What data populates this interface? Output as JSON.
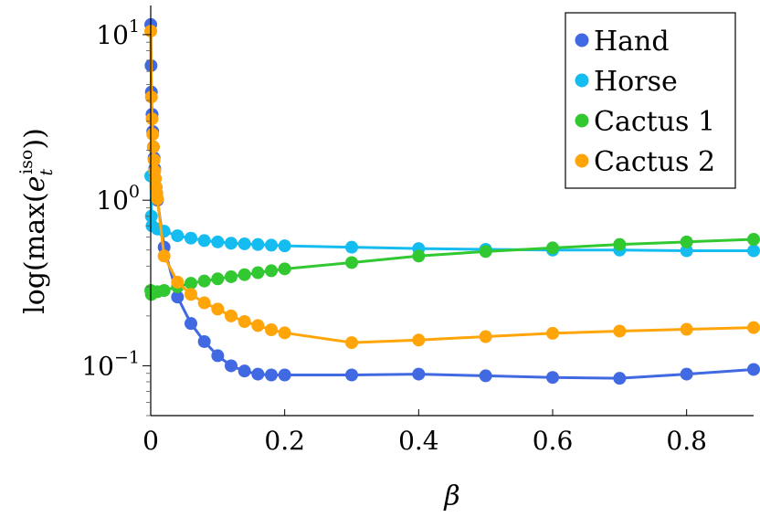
{
  "chart_data": {
    "type": "line",
    "title": "",
    "xlabel": "β",
    "ylabel": "log(max(e_t^iso))",
    "ylabel_parts": {
      "prefix": "log(max(",
      "base": "e",
      "sub": "t",
      "sup": "iso",
      "suffix": "))"
    },
    "xlim": [
      0,
      0.9
    ],
    "ylim": [
      0.05,
      15
    ],
    "yscale": "log",
    "grid": false,
    "legend_position": "top-right",
    "x_ticks": [
      {
        "value": 0,
        "label": "0"
      },
      {
        "value": 0.2,
        "label": "0.2"
      },
      {
        "value": 0.4,
        "label": "0.4"
      },
      {
        "value": 0.6,
        "label": "0.6"
      },
      {
        "value": 0.8,
        "label": "0.8"
      }
    ],
    "y_ticks": [
      {
        "value": 0.1,
        "base": "10",
        "exp": "−1"
      },
      {
        "value": 1,
        "base": "10",
        "exp": "0"
      },
      {
        "value": 10,
        "base": "10",
        "exp": "1"
      }
    ],
    "series": [
      {
        "name": "Hand",
        "color": "#4169e1",
        "points": [
          [
            0.0001,
            11.5
          ],
          [
            0.0005,
            6.5
          ],
          [
            0.001,
            4.5
          ],
          [
            0.002,
            3.3
          ],
          [
            0.003,
            2.6
          ],
          [
            0.004,
            2.1
          ],
          [
            0.005,
            1.8
          ],
          [
            0.006,
            1.55
          ],
          [
            0.007,
            1.35
          ],
          [
            0.008,
            1.2
          ],
          [
            0.009,
            1.1
          ],
          [
            0.01,
            1.0
          ],
          [
            0.02,
            0.52
          ],
          [
            0.04,
            0.26
          ],
          [
            0.06,
            0.18
          ],
          [
            0.08,
            0.14
          ],
          [
            0.1,
            0.115
          ],
          [
            0.12,
            0.1
          ],
          [
            0.14,
            0.093
          ],
          [
            0.16,
            0.089
          ],
          [
            0.18,
            0.088
          ],
          [
            0.2,
            0.088
          ],
          [
            0.3,
            0.088
          ],
          [
            0.4,
            0.089
          ],
          [
            0.5,
            0.087
          ],
          [
            0.6,
            0.085
          ],
          [
            0.7,
            0.084
          ],
          [
            0.8,
            0.089
          ],
          [
            0.9,
            0.095
          ]
        ]
      },
      {
        "name": "Horse",
        "color": "#14bcf0",
        "points": [
          [
            0.0001,
            1.4
          ],
          [
            0.001,
            0.8
          ],
          [
            0.002,
            0.7
          ],
          [
            0.01,
            0.67
          ],
          [
            0.02,
            0.65
          ],
          [
            0.04,
            0.61
          ],
          [
            0.06,
            0.59
          ],
          [
            0.08,
            0.57
          ],
          [
            0.1,
            0.56
          ],
          [
            0.12,
            0.55
          ],
          [
            0.14,
            0.545
          ],
          [
            0.16,
            0.54
          ],
          [
            0.18,
            0.535
          ],
          [
            0.2,
            0.53
          ],
          [
            0.3,
            0.52
          ],
          [
            0.4,
            0.51
          ],
          [
            0.5,
            0.505
          ],
          [
            0.6,
            0.5
          ],
          [
            0.7,
            0.5
          ],
          [
            0.8,
            0.495
          ],
          [
            0.9,
            0.495
          ]
        ]
      },
      {
        "name": "Cactus 1",
        "color": "#32c832",
        "points": [
          [
            0.0001,
            0.285
          ],
          [
            0.001,
            0.27
          ],
          [
            0.002,
            0.275
          ],
          [
            0.01,
            0.28
          ],
          [
            0.02,
            0.285
          ],
          [
            0.04,
            0.3
          ],
          [
            0.06,
            0.315
          ],
          [
            0.08,
            0.325
          ],
          [
            0.1,
            0.335
          ],
          [
            0.12,
            0.345
          ],
          [
            0.14,
            0.355
          ],
          [
            0.16,
            0.365
          ],
          [
            0.18,
            0.375
          ],
          [
            0.2,
            0.385
          ],
          [
            0.3,
            0.42
          ],
          [
            0.4,
            0.46
          ],
          [
            0.5,
            0.49
          ],
          [
            0.6,
            0.515
          ],
          [
            0.7,
            0.54
          ],
          [
            0.8,
            0.56
          ],
          [
            0.9,
            0.58
          ]
        ]
      },
      {
        "name": "Cactus 2",
        "color": "#ffa50a",
        "points": [
          [
            0.0001,
            10.5
          ],
          [
            0.001,
            4.2
          ],
          [
            0.002,
            3.1
          ],
          [
            0.003,
            2.5
          ],
          [
            0.004,
            2.1
          ],
          [
            0.005,
            1.75
          ],
          [
            0.006,
            1.5
          ],
          [
            0.007,
            1.35
          ],
          [
            0.008,
            1.2
          ],
          [
            0.009,
            1.1
          ],
          [
            0.01,
            1.02
          ],
          [
            0.02,
            0.46
          ],
          [
            0.04,
            0.32
          ],
          [
            0.06,
            0.27
          ],
          [
            0.08,
            0.24
          ],
          [
            0.1,
            0.22
          ],
          [
            0.12,
            0.2
          ],
          [
            0.14,
            0.185
          ],
          [
            0.16,
            0.175
          ],
          [
            0.18,
            0.165
          ],
          [
            0.2,
            0.158
          ],
          [
            0.3,
            0.138
          ],
          [
            0.4,
            0.143
          ],
          [
            0.5,
            0.15
          ],
          [
            0.6,
            0.157
          ],
          [
            0.7,
            0.162
          ],
          [
            0.8,
            0.166
          ],
          [
            0.9,
            0.17
          ]
        ]
      }
    ]
  }
}
